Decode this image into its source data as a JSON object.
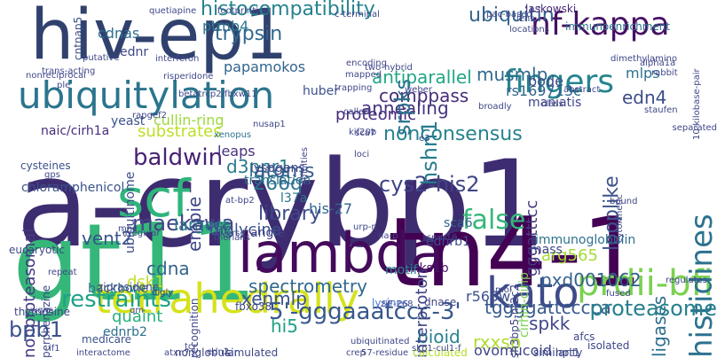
{
  "words": [
    {
      "text": "a-crybp1",
      "color": "#3e2c70",
      "vertical": false
    },
    {
      "text": "hiv-ep1",
      "color": "#30416e",
      "vertical": false
    },
    {
      "text": "gt11",
      "color": "#35b779",
      "vertical": false
    },
    {
      "text": "tn4-1",
      "color": "#440154",
      "vertical": false
    },
    {
      "text": "lambda",
      "color": "#440a5b",
      "vertical": false
    },
    {
      "text": "scf",
      "color": "#2fb47c",
      "vertical": false
    },
    {
      "text": "tetrahedrally",
      "color": "#d5e21a",
      "vertical": false
    },
    {
      "text": "ubiquitylation",
      "color": "#2b758e",
      "vertical": false
    },
    {
      "text": "kato",
      "color": "#3e4a89",
      "vertical": false
    },
    {
      "text": "prdii-bfi",
      "color": "#7ad151",
      "vertical": false
    },
    {
      "text": "nf-kappa",
      "color": "#471063",
      "vertical": false
    },
    {
      "text": "fingers",
      "color": "#25858e",
      "vertical": false
    },
    {
      "text": "histidines",
      "color": "#2c728e",
      "vertical": true
    },
    {
      "text": "false",
      "color": "#35b779",
      "vertical": false
    },
    {
      "text": "histocompatibility",
      "color": "#25838e",
      "vertical": false
    },
    {
      "text": "ubiquitin",
      "color": "#33638d",
      "vertical": false
    },
    {
      "text": "ptmb4",
      "color": "#2a768e",
      "vertical": false
    },
    {
      "text": "trypsin",
      "color": "#31688e",
      "vertical": false
    },
    {
      "text": "papamokos",
      "color": "#32658e",
      "vertical": false
    },
    {
      "text": "cdnas",
      "color": "#2d708e",
      "vertical": false
    },
    {
      "text": "substrates",
      "color": "#bddf26",
      "vertical": false
    },
    {
      "text": "baldwin",
      "color": "#482173",
      "vertical": false
    },
    {
      "text": "d3ppr1",
      "color": "#29798e",
      "vertical": false
    },
    {
      "text": "atoms",
      "color": "#375b8d",
      "vertical": false
    },
    {
      "text": "266q",
      "color": "#2c728e",
      "vertical": false
    },
    {
      "text": "lysogens",
      "color": "#3f4788",
      "vertical": false
    },
    {
      "text": "translation",
      "color": "#2e6e8e",
      "vertical": false
    },
    {
      "text": "proteomic",
      "color": "#472a7a",
      "vertical": false
    },
    {
      "text": "annealing",
      "color": "#46327e",
      "vertical": false
    },
    {
      "text": "antiparallel",
      "color": "#21a685",
      "vertical": false
    },
    {
      "text": "rs169713c",
      "color": "#32648e",
      "vertical": false
    },
    {
      "text": "comppass",
      "color": "#472c7a",
      "vertical": false
    },
    {
      "text": "nonconsensus",
      "color": "#26828e",
      "vertical": false
    },
    {
      "text": "cys2-his2",
      "color": "#404588",
      "vertical": false
    },
    {
      "text": "library",
      "color": "#3e4989",
      "vertical": false
    },
    {
      "text": "l37a",
      "color": "#2c728e",
      "vertical": false
    },
    {
      "text": "his-27",
      "color": "#31678e",
      "vertical": false
    },
    {
      "text": "maekawa",
      "color": "#414487",
      "vertical": false
    },
    {
      "text": "vent2",
      "color": "#3a548c",
      "vertical": false
    },
    {
      "text": "nonproteasomal",
      "color": "#453882",
      "vertical": true
    },
    {
      "text": "spectrometry",
      "color": "#31688e",
      "vertical": false
    },
    {
      "text": "xenmlp",
      "color": "#3b528b",
      "vertical": false
    },
    {
      "text": "dsk1",
      "color": "#c0df25",
      "vertical": false
    },
    {
      "text": "cdna",
      "color": "#33638d",
      "vertical": false
    },
    {
      "text": "hi5",
      "color": "#1fa187",
      "vertical": false
    },
    {
      "text": "spkk",
      "color": "#3f4788",
      "vertical": false
    },
    {
      "text": "pxd001062",
      "color": "#34618d",
      "vertical": false
    },
    {
      "text": "arg565",
      "color": "#a5db36",
      "vertical": false
    },
    {
      "text": "ligases",
      "color": "#2e6e8e",
      "vertical": true
    },
    {
      "text": "restraints",
      "color": "#1fa187",
      "vertical": false
    },
    {
      "text": "5'-gggaaatccc-3'",
      "color": "#38588c",
      "vertical": false
    },
    {
      "text": "bioid",
      "color": "#26828e",
      "vertical": false
    },
    {
      "text": "tggggattcccca",
      "color": "#375a8c",
      "vertical": false
    },
    {
      "text": "proteasome",
      "color": "#27808e",
      "vertical": false
    },
    {
      "text": "rxxsp",
      "color": "#addc30",
      "vertical": false
    },
    {
      "text": "ovomucoid",
      "color": "#414487",
      "vertical": false
    },
    {
      "text": "bpb1",
      "color": "#3b528b",
      "vertical": false
    },
    {
      "text": "xenopus",
      "color": "#2c728e",
      "vertical": false
    },
    {
      "text": "musmlp",
      "color": "#31688e",
      "vertical": false
    },
    {
      "text": "bode",
      "color": "#3d4e8a",
      "vertical": false
    },
    {
      "text": "mlps",
      "color": "#2c728e",
      "vertical": false
    },
    {
      "text": "edn4",
      "color": "#3e4c8a",
      "vertical": false
    },
    {
      "text": "srpks",
      "color": "#2c728e",
      "vertical": true
    },
    {
      "text": "hshn1",
      "color": "#287c8e",
      "vertical": true
    },
    {
      "text": "looplike",
      "color": "#3b528b",
      "vertical": true
    },
    {
      "text": "gggatttcc",
      "color": "#443983",
      "vertical": true
    },
    {
      "text": "empie",
      "color": "#3f4788",
      "vertical": true
    },
    {
      "text": "interproton",
      "color": "#404688",
      "vertical": true
    },
    {
      "text": "cirhin-cirip",
      "color": "#7ad151",
      "vertical": true
    },
    {
      "text": "laskowski",
      "color": "#482878",
      "vertical": false
    },
    {
      "text": "immunoenrichment",
      "color": "#2c728e",
      "vertical": false
    },
    {
      "text": "naic/cirh1a",
      "color": "#472d7b",
      "vertical": false
    },
    {
      "text": "cullin-ring",
      "color": "#9bd93c",
      "vertical": false
    },
    {
      "text": "leaps",
      "color": "#46327e",
      "vertical": false
    },
    {
      "text": "sca6",
      "color": "#33638d",
      "vertical": false
    },
    {
      "text": "anks1b",
      "color": "#471365",
      "vertical": false
    },
    {
      "text": "r565w",
      "color": "#3b528b",
      "vertical": false
    },
    {
      "text": "immunoglobulin",
      "color": "#2c728e",
      "vertical": false
    },
    {
      "text": "ednrb1",
      "color": "#3e4c8a",
      "vertical": false
    },
    {
      "text": "largest",
      "color": "#2a788e",
      "vertical": false
    },
    {
      "text": "diglycine",
      "color": "#39568c",
      "vertical": false
    },
    {
      "text": "angle",
      "color": "#433e85",
      "vertical": false
    },
    {
      "text": "motif",
      "color": "#26828e",
      "vertical": false
    },
    {
      "text": "quaint",
      "color": "#29af7f",
      "vertical": false
    },
    {
      "text": "ednrb2",
      "color": "#2d708e",
      "vertical": false
    },
    {
      "text": "backbone",
      "color": "#2c728e",
      "vertical": false
    },
    {
      "text": "huber",
      "color": "#3b528b",
      "vertical": false
    },
    {
      "text": "maniatis",
      "color": "#404588",
      "vertical": false
    },
    {
      "text": "ubiquitinome",
      "color": "#3e4c8a",
      "vertical": true
    },
    {
      "text": "chloramphenicol",
      "color": "#3a538b",
      "vertical": false
    },
    {
      "text": "mass",
      "color": "#3f4788",
      "vertical": false
    },
    {
      "text": "yeast",
      "color": "#3b528b",
      "vertical": false
    },
    {
      "text": "ednr",
      "color": "#3f4788",
      "vertical": false
    },
    {
      "text": "cntnap5",
      "color": "#3b528b",
      "vertical": true
    },
    {
      "text": "recognition",
      "color": "#3f4788",
      "vertical": true
    },
    {
      "text": "fbxo38",
      "color": "#3e4989",
      "vertical": false
    },
    {
      "text": "dnase",
      "color": "#404688",
      "vertical": false
    },
    {
      "text": "lysines",
      "color": "#4d78d2",
      "vertical": false
    },
    {
      "text": "cysteines",
      "color": "#3b528b",
      "vertical": false
    },
    {
      "text": "ziprasidone",
      "color": "#3f4788",
      "vertical": false
    },
    {
      "text": "thymosine",
      "color": "#3f4788",
      "vertical": false
    },
    {
      "text": "perphenazine",
      "color": "#3f4788",
      "vertical": true
    },
    {
      "text": "eucaryotic",
      "color": "#3f4788",
      "vertical": false
    },
    {
      "text": "nonglobular",
      "color": "#3f4788",
      "vertical": false
    },
    {
      "text": "simulated",
      "color": "#3f4788",
      "vertical": false
    },
    {
      "text": "medicare",
      "color": "#3b528b",
      "vertical": false
    },
    {
      "text": "isolated",
      "color": "#3f4788",
      "vertical": false
    },
    {
      "text": "sh3bp5-nr2c2",
      "color": "#3f4788",
      "vertical": true
    },
    {
      "text": "npt1",
      "color": "#3f4788",
      "vertical": false
    },
    {
      "text": "afcs",
      "color": "#3f4788",
      "vertical": false
    },
    {
      "text": "similarity",
      "color": "#3f4788",
      "vertical": false
    },
    {
      "text": "calculated",
      "color": "#b5de2b",
      "vertical": false
    },
    {
      "text": "57-residue",
      "color": "#3f4788",
      "vertical": false
    },
    {
      "text": "crep",
      "color": "#3f4788",
      "vertical": false
    },
    {
      "text": "atxn7",
      "color": "#3f4788",
      "vertical": false
    },
    {
      "text": "edn2",
      "color": "#3f4788",
      "vertical": false
    },
    {
      "text": "ubiquitinated",
      "color": "#3f4788",
      "vertical": false
    },
    {
      "text": "skp1-cul1-f",
      "color": "#3f4788",
      "vertical": false
    },
    {
      "text": "interactome",
      "color": "#3f4788",
      "vertical": false
    },
    {
      "text": "c-terminal",
      "color": "#3f4788",
      "vertical": false
    },
    {
      "text": "quetiapine",
      "color": "#3f4788",
      "vertical": false
    },
    {
      "text": "footprinting",
      "color": "#3f4788",
      "vertical": false
    },
    {
      "text": "interferon",
      "color": "#3f4788",
      "vertical": false
    },
    {
      "text": "risperidone",
      "color": "#3f4788",
      "vertical": false
    },
    {
      "text": "trans-acting",
      "color": "#3f4788",
      "vertical": false
    },
    {
      "text": "putative",
      "color": "#3f4788",
      "vertical": false
    },
    {
      "text": "ple",
      "color": "#3f4788",
      "vertical": false
    },
    {
      "text": "nonreciprocal",
      "color": "#3f4788",
      "vertical": false
    },
    {
      "text": "encoding",
      "color": "#3f4788",
      "vertical": false
    },
    {
      "text": "two-hybrid",
      "color": "#3f4788",
      "vertical": false
    },
    {
      "text": "mapped",
      "color": "#3f4788",
      "vertical": false
    },
    {
      "text": "trapping",
      "color": "#3f4788",
      "vertical": false
    },
    {
      "text": "locations",
      "color": "#3f4788",
      "vertical": false
    },
    {
      "text": "lens",
      "color": "#3f4788",
      "vertical": false
    },
    {
      "text": "class",
      "color": "#3f4788",
      "vertical": false
    },
    {
      "text": "pac-based",
      "color": "#3f4788",
      "vertical": false
    },
    {
      "text": "staufen",
      "color": "#3f4788",
      "vertical": false
    },
    {
      "text": "dimethylamino",
      "color": "#3f4788",
      "vertical": false
    },
    {
      "text": "alpha1a",
      "color": "#3f4788",
      "vertical": false
    },
    {
      "text": "rabbit",
      "color": "#3f4788",
      "vertical": false
    },
    {
      "text": "weber",
      "color": "#3f4788",
      "vertical": false
    },
    {
      "text": "abstract",
      "color": "#3f4788",
      "vertical": false
    },
    {
      "text": "called",
      "color": "#3f4788",
      "vertical": false
    },
    {
      "text": "rapgef2",
      "color": "#3f4788",
      "vertical": false
    },
    {
      "text": "betatrcp2/fbxw11",
      "color": "#3f4788",
      "vertical": false
    },
    {
      "text": "nusap1",
      "color": "#3f4788",
      "vertical": false
    },
    {
      "text": "broadly",
      "color": "#3f4788",
      "vertical": false
    },
    {
      "text": "e3",
      "color": "#3f4788",
      "vertical": false
    },
    {
      "text": "loci",
      "color": "#3f4788",
      "vertical": false
    },
    {
      "text": "sca7",
      "color": "#3f4788",
      "vertical": false
    },
    {
      "text": "kif20b",
      "color": "#3f4788",
      "vertical": false
    },
    {
      "text": "affinities",
      "color": "#3f4788",
      "vertical": true
    },
    {
      "text": "10-kilobase-pair",
      "color": "#3f4788",
      "vertical": true
    },
    {
      "text": "separated",
      "color": "#3f4788",
      "vertical": false
    },
    {
      "text": "gps",
      "color": "#3f4788",
      "vertical": false
    },
    {
      "text": "irregular",
      "color": "#3f4788",
      "vertical": false
    },
    {
      "text": "therians",
      "color": "#3f4788",
      "vertical": false
    },
    {
      "text": "na-p",
      "color": "#3f4788",
      "vertical": false
    },
    {
      "text": "urp-n",
      "color": "#3f4788",
      "vertical": false
    },
    {
      "text": "snu-16",
      "color": "#3f4788",
      "vertical": false
    },
    {
      "text": "digly",
      "color": "#3f4788",
      "vertical": false
    },
    {
      "text": "repeat",
      "color": "#3f4788",
      "vertical": false
    },
    {
      "text": "diverse",
      "color": "#3f4788",
      "vertical": false
    },
    {
      "text": "ziF-268",
      "color": "#3f4788",
      "vertical": false
    },
    {
      "text": "mol",
      "color": "#3f4788",
      "vertical": false
    },
    {
      "text": "fused",
      "color": "#3f4788",
      "vertical": false
    },
    {
      "text": "bound",
      "color": "#3f4788",
      "vertical": false
    },
    {
      "text": "cytokinetic",
      "color": "#3f4788",
      "vertical": true
    },
    {
      "text": "regulates",
      "color": "#3f4788",
      "vertical": false
    },
    {
      "text": "tcr",
      "color": "#3f4788",
      "vertical": false
    },
    {
      "text": "if1",
      "color": "#3f4788",
      "vertical": false
    },
    {
      "text": "mhc",
      "color": "#3f4788",
      "vertical": false
    },
    {
      "text": "wghs",
      "color": "#3f4788",
      "vertical": false
    },
    {
      "text": "qm",
      "color": "#3f4788",
      "vertical": false
    },
    {
      "text": "at-bp2",
      "color": "#3f4788",
      "vertical": false
    }
  ]
}
